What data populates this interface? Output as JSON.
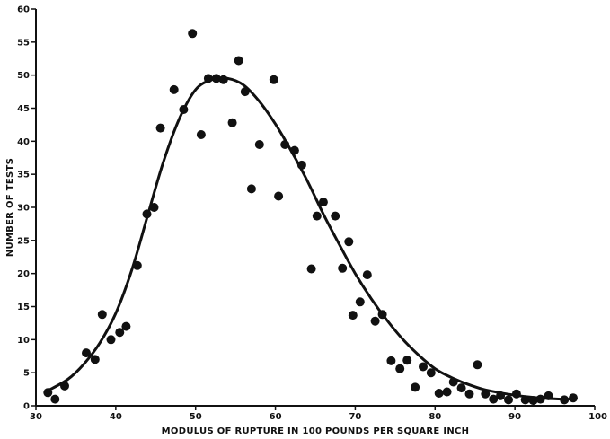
{
  "chart_data": {
    "type": "scatter",
    "title": "",
    "xlabel": "MODULUS OF RUPTURE IN 100 POUNDS PER SQUARE INCH",
    "ylabel": "NUMBER OF TESTS",
    "xlim": [
      30,
      100
    ],
    "ylim": [
      0,
      60
    ],
    "x_ticks": [
      "30",
      "40",
      "50",
      "60",
      "70",
      "80",
      "90",
      "100"
    ],
    "y_ticks": [
      "0",
      "5",
      "10",
      "15",
      "20",
      "25",
      "30",
      "35",
      "40",
      "45",
      "50",
      "55",
      "60"
    ],
    "grid": false,
    "legend": "none",
    "colors": {
      "ink": "#111111",
      "background": "#ffffff"
    },
    "series": [
      {
        "type": "scatter",
        "x": [
          31.5,
          32.4,
          33.6,
          36.3,
          37.4,
          38.3,
          39.4,
          40.5,
          41.3,
          42.7,
          43.9,
          44.8,
          45.6,
          47.3,
          48.5,
          49.6,
          50.7,
          51.6,
          52.6,
          53.5,
          54.6,
          55.4,
          56.2,
          57.0,
          58.0,
          59.8,
          60.4,
          61.2,
          62.4,
          63.3,
          64.5,
          65.2,
          66.0,
          67.5,
          68.4,
          69.2,
          69.7,
          70.6,
          71.5,
          72.5,
          73.4,
          74.5,
          75.6,
          76.5,
          77.5,
          78.5,
          79.5,
          80.5,
          81.5,
          82.3,
          83.3,
          84.3,
          85.3,
          86.3,
          87.3,
          88.2,
          89.2,
          90.2,
          91.3,
          92.3,
          93.2,
          94.2,
          96.2,
          97.3
        ],
        "y": [
          2.0,
          1.0,
          3.0,
          8.0,
          7.0,
          13.8,
          10.0,
          11.1,
          12.0,
          21.2,
          29.0,
          30.0,
          42.0,
          47.8,
          44.8,
          56.3,
          41.0,
          49.5,
          49.5,
          49.3,
          42.8,
          52.2,
          47.5,
          32.8,
          39.5,
          49.3,
          31.7,
          39.5,
          38.6,
          36.4,
          20.7,
          28.7,
          30.8,
          28.7,
          20.8,
          24.8,
          13.7,
          15.7,
          19.8,
          12.8,
          13.8,
          6.8,
          5.6,
          6.9,
          2.8,
          5.9,
          5.0,
          1.9,
          2.1,
          3.6,
          2.7,
          1.8,
          6.2,
          1.8,
          1.0,
          1.5,
          0.9,
          1.8,
          0.9,
          0.8,
          1.0,
          1.5,
          0.9,
          1.2
        ]
      },
      {
        "type": "line",
        "x": [
          31.5,
          34,
          36,
          38,
          40,
          42,
          44,
          46,
          48,
          50,
          52,
          54,
          56,
          58,
          60,
          62,
          64,
          66,
          68,
          70,
          72,
          74,
          76,
          78,
          80,
          82,
          84,
          86,
          88,
          90,
          92,
          94,
          96,
          97.5
        ],
        "y": [
          2.3,
          4.0,
          6.3,
          9.5,
          14.0,
          20.5,
          28.8,
          37.0,
          43.5,
          47.8,
          49.3,
          49.5,
          48.5,
          46.0,
          42.6,
          38.5,
          34.0,
          29.0,
          24.4,
          20.0,
          16.2,
          12.9,
          10.0,
          7.6,
          5.6,
          4.3,
          3.3,
          2.5,
          2.0,
          1.6,
          1.3,
          1.1,
          1.0,
          1.0
        ]
      }
    ]
  }
}
